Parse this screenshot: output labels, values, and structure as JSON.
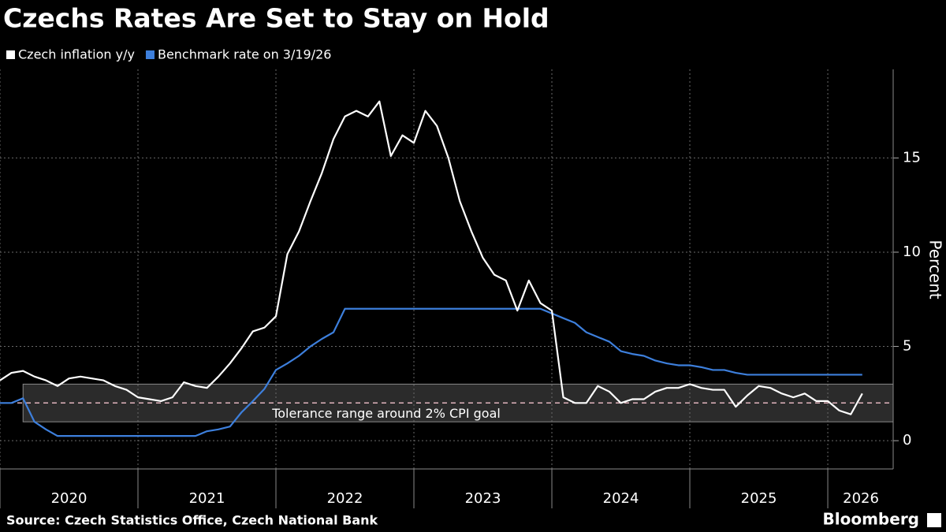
{
  "chart_data": {
    "type": "line",
    "title": "Czechs Rates Are Set to Stay on Hold",
    "y_label": "Percent",
    "source": "Source: Czech Statistics Office, Czech National Bank",
    "logo": "Bloomberg",
    "x": [
      2020.0,
      2020.083,
      2020.167,
      2020.25,
      2020.333,
      2020.417,
      2020.5,
      2020.583,
      2020.667,
      2020.75,
      2020.833,
      2020.917,
      2021.0,
      2021.083,
      2021.167,
      2021.25,
      2021.333,
      2021.417,
      2021.5,
      2021.583,
      2021.667,
      2021.75,
      2021.833,
      2021.917,
      2022.0,
      2022.083,
      2022.167,
      2022.25,
      2022.333,
      2022.417,
      2022.5,
      2022.583,
      2022.667,
      2022.75,
      2022.833,
      2022.917,
      2023.0,
      2023.083,
      2023.167,
      2023.25,
      2023.333,
      2023.417,
      2023.5,
      2023.583,
      2023.667,
      2023.75,
      2023.833,
      2023.917,
      2024.0,
      2024.083,
      2024.167,
      2024.25,
      2024.333,
      2024.417,
      2024.5,
      2024.583,
      2024.667,
      2024.75,
      2024.833,
      2024.917,
      2025.0,
      2025.083,
      2025.167,
      2025.25,
      2025.333,
      2025.417,
      2025.5,
      2025.583,
      2025.667,
      2025.75,
      2025.833,
      2025.917,
      2026.0,
      2026.083,
      2026.167,
      2026.25
    ],
    "series": [
      {
        "name": "Czech inflation y/y",
        "color": "#ffffff",
        "values": [
          3.2,
          3.6,
          3.7,
          3.4,
          3.2,
          2.9,
          3.3,
          3.4,
          3.3,
          3.2,
          2.9,
          2.7,
          2.3,
          2.2,
          2.1,
          2.3,
          3.1,
          2.9,
          2.8,
          3.4,
          4.1,
          4.9,
          5.8,
          6.0,
          6.6,
          9.9,
          11.1,
          12.7,
          14.2,
          16.0,
          17.2,
          17.5,
          17.2,
          18.0,
          15.1,
          16.2,
          15.8,
          17.5,
          16.7,
          15.0,
          12.7,
          11.1,
          9.7,
          8.8,
          8.5,
          6.9,
          8.5,
          7.3,
          6.9,
          2.3,
          2.0,
          2.0,
          2.9,
          2.6,
          2.0,
          2.2,
          2.2,
          2.6,
          2.8,
          2.8,
          3.0,
          2.8,
          2.7,
          2.7,
          1.8,
          2.4,
          2.9,
          2.8,
          2.5,
          2.3,
          2.5,
          2.1,
          2.1,
          1.6,
          1.4,
          2.5
        ]
      },
      {
        "name": "Benchmark rate on 3/19/26",
        "color": "#3d7fdc",
        "values": [
          2.0,
          2.0,
          2.25,
          1.0,
          0.6,
          0.25,
          0.25,
          0.25,
          0.25,
          0.25,
          0.25,
          0.25,
          0.25,
          0.25,
          0.25,
          0.25,
          0.25,
          0.25,
          0.5,
          0.6,
          0.75,
          1.5,
          2.1,
          2.75,
          3.75,
          4.1,
          4.5,
          5.0,
          5.4,
          5.75,
          7.0,
          7.0,
          7.0,
          7.0,
          7.0,
          7.0,
          7.0,
          7.0,
          7.0,
          7.0,
          7.0,
          7.0,
          7.0,
          7.0,
          7.0,
          7.0,
          7.0,
          7.0,
          6.75,
          6.5,
          6.25,
          5.75,
          5.5,
          5.25,
          4.75,
          4.6,
          4.5,
          4.25,
          4.1,
          4.0,
          4.0,
          3.9,
          3.75,
          3.75,
          3.6,
          3.5,
          3.5,
          3.5,
          3.5,
          3.5,
          3.5,
          3.5,
          3.5,
          3.5,
          3.5,
          3.5
        ]
      }
    ],
    "band": {
      "x_start": 2020.167,
      "y": [
        1,
        3
      ],
      "target": 2,
      "label": "Tolerance range around 2% CPI goal"
    },
    "xlim": [
      2020.0,
      2026.474
    ],
    "xticks": [
      {
        "value": 2020.5,
        "label": "2020"
      },
      {
        "value": 2021.5,
        "label": "2021"
      },
      {
        "value": 2022.5,
        "label": "2022"
      },
      {
        "value": 2023.5,
        "label": "2023"
      },
      {
        "value": 2024.5,
        "label": "2024"
      },
      {
        "value": 2025.5,
        "label": "2025"
      },
      {
        "value": 2026.24,
        "label": "2026"
      }
    ],
    "ylim": [
      -1.5,
      19.7
    ],
    "yticks": [
      0,
      5,
      10,
      15
    ],
    "grid": true
  }
}
